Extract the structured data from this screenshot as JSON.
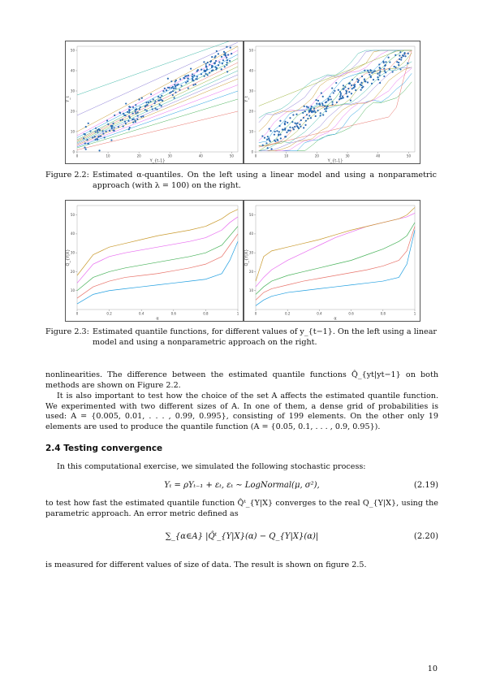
{
  "figures": [
    {
      "caption_label": "Figure 2.2:",
      "caption_text": "Estimated α-quantiles. On the left using a linear model and using a nonparametric approach (with λ = 100) on the right.",
      "chart_data": [
        {
          "type": "scatter",
          "xlabel": "Y_{t-1}",
          "ylabel": "Y_t",
          "xlim": [
            0,
            52
          ],
          "ylim": [
            0,
            52
          ],
          "xticks": [
            0,
            10,
            20,
            30,
            40,
            50
          ],
          "yticks": [
            0,
            10,
            20,
            30,
            40,
            50
          ],
          "quantile_lines": [
            {
              "y0": 1,
              "y1": 20
            },
            {
              "y0": 2,
              "y1": 26
            },
            {
              "y0": 2.5,
              "y1": 30
            },
            {
              "y0": 3,
              "y1": 33
            },
            {
              "y0": 3.5,
              "y1": 36
            },
            {
              "y0": 4,
              "y1": 38
            },
            {
              "y0": 4.5,
              "y1": 40
            },
            {
              "y0": 5,
              "y1": 42
            },
            {
              "y0": 5.5,
              "y1": 44
            },
            {
              "y0": 6,
              "y1": 46
            },
            {
              "y0": 7,
              "y1": 48
            },
            {
              "y0": 8,
              "y1": 50
            },
            {
              "y0": 10,
              "y1": 52
            },
            {
              "y0": 18,
              "y1": 54
            },
            {
              "y0": 28,
              "y1": 56
            }
          ]
        },
        {
          "type": "scatter",
          "xlabel": "Y_{t-1}",
          "ylabel": "Y_t",
          "xlim": [
            0,
            52
          ],
          "ylim": [
            0,
            52
          ],
          "xticks": [
            0,
            10,
            20,
            30,
            40,
            50
          ],
          "yticks": [
            0,
            10,
            20,
            30,
            40,
            50
          ]
        }
      ]
    },
    {
      "caption_label": "Figure 2.3:",
      "caption_text": "Estimated quantile functions, for different values of y_{t−1}. On the left using a linear model and using a nonparametric approach on the right.",
      "chart_data": [
        {
          "type": "line",
          "xlabel": "α",
          "ylabel": "Q_{Y|X}",
          "xlim": [
            0,
            1
          ],
          "ylim": [
            0,
            55
          ],
          "xticks": [
            0.0,
            0.2,
            0.4,
            0.6,
            0.8,
            1.0
          ],
          "yticks": [
            10,
            20,
            30,
            40,
            50
          ],
          "x": [
            0.0,
            0.1,
            0.2,
            0.3,
            0.4,
            0.5,
            0.6,
            0.7,
            0.8,
            0.9,
            0.95,
            1.0
          ],
          "series": [
            {
              "color": "#1f9ee0",
              "values": [
                3,
                8,
                10,
                11,
                12,
                13,
                14,
                15,
                16,
                19,
                26,
                36
              ]
            },
            {
              "color": "#e8736a",
              "values": [
                6,
                12,
                15,
                17,
                18,
                19,
                20.5,
                22,
                24,
                28,
                34,
                40
              ]
            },
            {
              "color": "#49b35b",
              "values": [
                10,
                17,
                20,
                22,
                23.5,
                25,
                26.5,
                28,
                30,
                34,
                39,
                44
              ]
            },
            {
              "color": "#e86bf0",
              "values": [
                14,
                24,
                28,
                30,
                31.5,
                33,
                34.5,
                36,
                38,
                42,
                46,
                49
              ]
            },
            {
              "color": "#c99a2e",
              "values": [
                18,
                29,
                33,
                35,
                37,
                39,
                40.5,
                42,
                44,
                48,
                51,
                53
              ]
            }
          ]
        },
        {
          "type": "line",
          "xlabel": "α",
          "ylabel": "Q_{Y|X}",
          "xlim": [
            0,
            1
          ],
          "ylim": [
            0,
            55
          ],
          "xticks": [
            0.0,
            0.2,
            0.4,
            0.6,
            0.8,
            1.0
          ],
          "yticks": [
            10,
            20,
            30,
            40,
            50
          ],
          "x": [
            0.0,
            0.05,
            0.1,
            0.2,
            0.3,
            0.4,
            0.5,
            0.6,
            0.7,
            0.8,
            0.9,
            0.95,
            1.0
          ],
          "series": [
            {
              "color": "#1f9ee0",
              "values": [
                2,
                5,
                7,
                9,
                10,
                11,
                12,
                13,
                14,
                15,
                17,
                24,
                42
              ]
            },
            {
              "color": "#e8736a",
              "values": [
                5,
                9,
                11,
                13,
                15,
                16.5,
                18,
                19.5,
                21,
                23,
                26,
                31,
                44
              ]
            },
            {
              "color": "#49b35b",
              "values": [
                8,
                12,
                15,
                18,
                20,
                22,
                24,
                26,
                29,
                32,
                36,
                39,
                46
              ]
            },
            {
              "color": "#e86bf0",
              "values": [
                12,
                17,
                21,
                26,
                30,
                34,
                38,
                41,
                44,
                46,
                48,
                49,
                51
              ]
            },
            {
              "color": "#c99a2e",
              "values": [
                15,
                28,
                31,
                33,
                35,
                37,
                39.5,
                42,
                44,
                46,
                48,
                50,
                54
              ]
            }
          ]
        }
      ]
    }
  ],
  "text": {
    "p1": "nonlinearities. The difference between the estimated quantile functions Q̂_{yt|yt−1} on both methods are shown on Figure 2.2.",
    "p2": "It is also important to test how the choice of the set A affects the estimated quantile function. We experimented with two different sizes of A. In one of them, a dense grid of probabilities is used: A = {0.005, 0.01, . . . , 0.99, 0.995}, consisting of 199 elements. On the other only 19 elements are used to produce the quantile function (A = {0.05, 0.1, . . . , 0.9, 0.95}).",
    "section_title": "2.4 Testing convergence",
    "p3": "In this computational exercise, we simulated the following stochastic process:",
    "eq1": "Yₜ = ρYₜ₋₁ + εₜ,        εₜ ∼ LogNormal(μ, σ²),",
    "eq1_num": "(2.19)",
    "p4": "to test how fast the estimated quantile function Q̂ᵗ_{Y|X} converges to the real Q_{Y|X}, using the parametric approach. An error metric defined as",
    "eq2": "∑_{α∈A} |Q̂ᵗ_{Y|X}(α) − Q_{Y|X}(α)|",
    "eq2_num": "(2.20)",
    "p5": "is measured for different values of size of data. The result is shown on figure 2.5.",
    "page_number": "10"
  },
  "colors": {
    "points": "#2b6cb3",
    "palette": [
      "#e8736a",
      "#49b35b",
      "#1f9ee0",
      "#e86bf0",
      "#c99a2e",
      "#8a7bd6",
      "#3fb8a8",
      "#9bb33a"
    ]
  }
}
